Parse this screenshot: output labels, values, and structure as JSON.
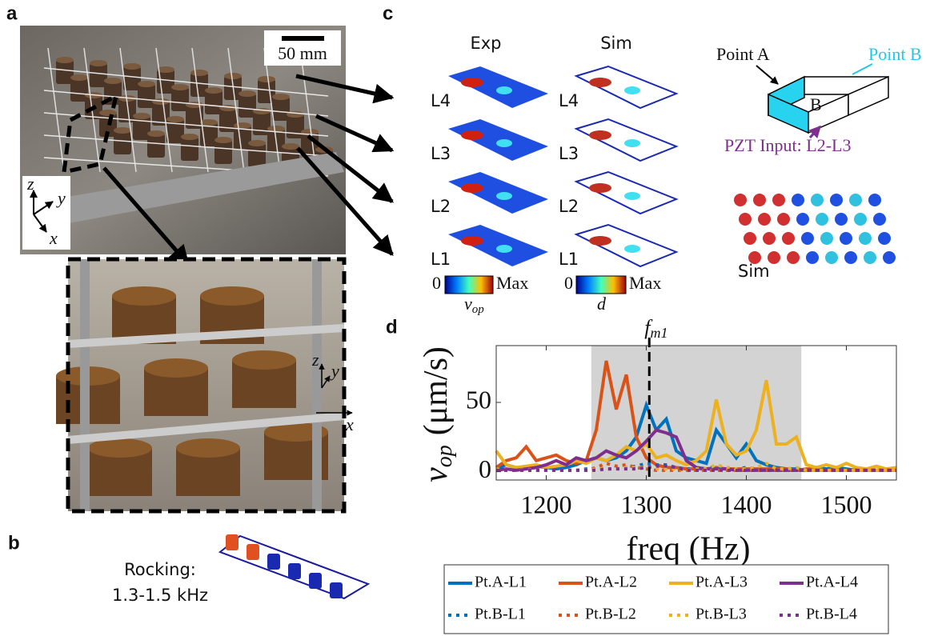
{
  "panels": {
    "a": {
      "label": "a",
      "scale": "50 mm",
      "axes": [
        "z",
        "y",
        "x"
      ],
      "zoom_axes": [
        "z",
        "y",
        "x"
      ]
    },
    "b": {
      "label": "b",
      "text": [
        "Rocking:",
        "1.3-1.5 kHz"
      ]
    },
    "c": {
      "label": "c",
      "columns": [
        "Exp",
        "Sim"
      ],
      "levels": [
        "L4",
        "L3",
        "L2",
        "L1"
      ],
      "colorbar_min": "0",
      "colorbar_max": "Max",
      "exp_quantity": "v",
      "exp_quantity_sub": "op",
      "sim_quantity": "d",
      "point_a": "Point A",
      "point_b": "Point B",
      "face_label": "B",
      "input": "PZT Input: L2-L3",
      "sim_label": "Sim"
    },
    "d": {
      "label": "d"
    }
  },
  "chart_data": {
    "type": "line",
    "xlabel": "freq (Hz)",
    "ylabel_symbol": "v",
    "ylabel_subscript": "op",
    "ylabel": "(μm/s)",
    "xlim": [
      1150,
      1550
    ],
    "ylim": [
      -6,
      91
    ],
    "xticks": [
      1200,
      1300,
      1400,
      1500
    ],
    "yticks": [
      0,
      50
    ],
    "shaded": [
      1245,
      1455
    ],
    "annotation": {
      "x": 1303,
      "text": "f",
      "subscript": "m1"
    },
    "x": [
      1150,
      1160,
      1170,
      1180,
      1190,
      1200,
      1210,
      1220,
      1230,
      1240,
      1250,
      1260,
      1270,
      1280,
      1290,
      1300,
      1310,
      1320,
      1330,
      1340,
      1350,
      1360,
      1370,
      1380,
      1390,
      1400,
      1410,
      1420,
      1430,
      1440,
      1450,
      1460,
      1470,
      1480,
      1490,
      1500,
      1510,
      1520,
      1530,
      1540,
      1550
    ],
    "series": [
      {
        "name": "Pt.A-L1",
        "color": "#0072bd",
        "linestyle": "solid",
        "values": [
          2,
          5,
          3,
          2,
          4,
          3,
          2,
          3,
          5,
          8,
          10,
          8,
          10,
          15,
          25,
          48,
          30,
          38,
          15,
          10,
          8,
          6,
          30,
          20,
          10,
          20,
          8,
          5,
          3,
          2,
          2,
          1,
          3,
          2,
          3,
          2,
          1,
          2,
          1,
          1,
          1
        ]
      },
      {
        "name": "Pt.A-L2",
        "color": "#d95319",
        "linestyle": "solid",
        "values": [
          3,
          8,
          10,
          18,
          8,
          10,
          12,
          8,
          6,
          8,
          30,
          80,
          45,
          70,
          25,
          10,
          5,
          3,
          3,
          2,
          2,
          2,
          3,
          2,
          2,
          2,
          2,
          2,
          2,
          2,
          1,
          2,
          2,
          1,
          1,
          1,
          1,
          1,
          1,
          1,
          1
        ]
      },
      {
        "name": "Pt.A-L3",
        "color": "#edb120",
        "linestyle": "solid",
        "values": [
          15,
          5,
          3,
          4,
          5,
          3,
          4,
          5,
          8,
          6,
          10,
          8,
          12,
          18,
          15,
          20,
          10,
          12,
          8,
          5,
          8,
          15,
          52,
          20,
          12,
          15,
          30,
          66,
          20,
          20,
          25,
          5,
          3,
          5,
          3,
          6,
          3,
          2,
          4,
          2,
          3
        ]
      },
      {
        "name": "Pt.A-L4",
        "color": "#7e2f8e",
        "linestyle": "solid",
        "values": [
          1,
          2,
          1,
          2,
          3,
          5,
          8,
          5,
          10,
          8,
          10,
          15,
          12,
          10,
          15,
          22,
          30,
          28,
          25,
          8,
          3,
          2,
          2,
          2,
          1,
          1,
          1,
          1,
          1,
          1,
          1,
          1,
          1,
          1,
          1,
          1,
          1,
          1,
          1,
          1,
          1
        ]
      },
      {
        "name": "Pt.B-L1",
        "color": "#0072bd",
        "linestyle": "dotted",
        "values": [
          1,
          1,
          1,
          1,
          1,
          1,
          1,
          1,
          1,
          2,
          2,
          2,
          2,
          3,
          4,
          6,
          5,
          5,
          3,
          2,
          2,
          2,
          4,
          3,
          2,
          3,
          2,
          1,
          1,
          1,
          1,
          1,
          1,
          1,
          1,
          1,
          1,
          1,
          1,
          1,
          1
        ]
      },
      {
        "name": "Pt.B-L2",
        "color": "#d95319",
        "linestyle": "dotted",
        "values": [
          1,
          1,
          1,
          2,
          1,
          1,
          1,
          1,
          1,
          1,
          3,
          6,
          4,
          5,
          3,
          2,
          1,
          1,
          1,
          1,
          1,
          1,
          1,
          1,
          1,
          1,
          1,
          1,
          1,
          1,
          1,
          1,
          1,
          1,
          1,
          1,
          1,
          1,
          1,
          1,
          1
        ]
      },
      {
        "name": "Pt.B-L3",
        "color": "#edb120",
        "linestyle": "dotted",
        "values": [
          2,
          1,
          1,
          1,
          1,
          1,
          1,
          1,
          1,
          1,
          2,
          2,
          2,
          3,
          3,
          3,
          2,
          2,
          2,
          1,
          2,
          2,
          5,
          3,
          2,
          2,
          3,
          6,
          2,
          2,
          3,
          1,
          1,
          1,
          1,
          1,
          1,
          1,
          1,
          1,
          1
        ]
      },
      {
        "name": "Pt.B-L4",
        "color": "#7e2f8e",
        "linestyle": "dotted",
        "values": [
          1,
          1,
          1,
          1,
          1,
          1,
          1,
          1,
          1,
          1,
          1,
          2,
          2,
          2,
          2,
          3,
          4,
          4,
          3,
          1,
          1,
          1,
          1,
          1,
          1,
          1,
          1,
          1,
          1,
          1,
          1,
          1,
          1,
          1,
          1,
          1,
          1,
          1,
          1,
          1,
          1
        ]
      }
    ]
  }
}
